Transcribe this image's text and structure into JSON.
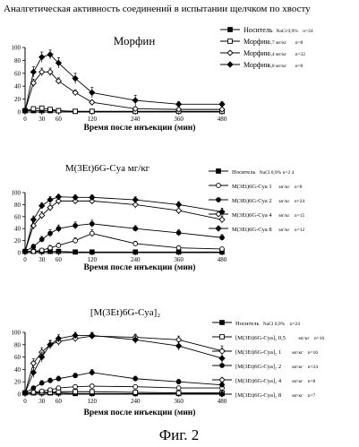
{
  "header": {
    "title": "Аналгетическая активность соединений в испытании щелчком по хвосту",
    "caption": "Фиг. 2"
  },
  "chart_data": [
    {
      "type": "line",
      "title": "Морфин",
      "xlabel": "Время после инъекции (мин)",
      "ylabel": "",
      "xlim": [
        0,
        480
      ],
      "ylim": [
        0,
        100
      ],
      "x_ticks": [
        "0",
        "30",
        "60",
        "120",
        "240",
        "360",
        "480"
      ],
      "y_ticks": [
        "0",
        "20",
        "40",
        "60",
        "80",
        "100"
      ],
      "grid": false,
      "legend_position": "right",
      "series": [
        {
          "name": "Носитель",
          "dose": "NaCl 0,9%",
          "n": "n=24",
          "marker": "square-filled",
          "points": [
            [
              0,
              2
            ],
            [
              15,
              2
            ],
            [
              30,
              2
            ],
            [
              45,
              2
            ],
            [
              60,
              2
            ],
            [
              90,
              1
            ],
            [
              120,
              1
            ],
            [
              240,
              1
            ],
            [
              360,
              1
            ],
            [
              480,
              1
            ]
          ],
          "errors": [
            1,
            1,
            1,
            1,
            1,
            1,
            1,
            1,
            1,
            1
          ]
        },
        {
          "name": "Морфин",
          "dose": "1,7 мг/кг",
          "n": "n=8",
          "marker": "square-open",
          "points": [
            [
              0,
              2
            ],
            [
              15,
              5
            ],
            [
              30,
              6
            ],
            [
              45,
              4
            ],
            [
              60,
              2
            ],
            [
              90,
              1
            ],
            [
              120,
              1
            ],
            [
              240,
              1
            ],
            [
              360,
              1
            ],
            [
              480,
              1
            ]
          ],
          "errors": [
            1,
            3,
            3,
            2,
            1,
            1,
            1,
            1,
            1,
            1
          ]
        },
        {
          "name": "Морфин",
          "dose": "3,4 мг/кг",
          "n": "n=32",
          "marker": "diamond-open",
          "points": [
            [
              0,
              2
            ],
            [
              15,
              45
            ],
            [
              30,
              62
            ],
            [
              45,
              62
            ],
            [
              60,
              48
            ],
            [
              90,
              30
            ],
            [
              120,
              15
            ],
            [
              240,
              5
            ],
            [
              360,
              4
            ],
            [
              480,
              4
            ]
          ],
          "errors": [
            1,
            6,
            6,
            6,
            5,
            4,
            3,
            2,
            2,
            2
          ]
        },
        {
          "name": "Морфин",
          "dose": "6,8 мг/кг",
          "n": "n=8",
          "marker": "diamond-filled",
          "points": [
            [
              0,
              2
            ],
            [
              15,
              62
            ],
            [
              30,
              85
            ],
            [
              45,
              89
            ],
            [
              60,
              76
            ],
            [
              90,
              52
            ],
            [
              120,
              30
            ],
            [
              240,
              18
            ],
            [
              360,
              12
            ],
            [
              480,
              12
            ]
          ],
          "errors": [
            1,
            8,
            8,
            7,
            8,
            8,
            8,
            8,
            4,
            4
          ]
        }
      ]
    },
    {
      "type": "line",
      "title": "M(3Et)6G-Cya мг/кг",
      "xlabel": "Время после инъекции (мин)",
      "ylabel": "",
      "xlim": [
        0,
        480
      ],
      "ylim": [
        0,
        100
      ],
      "x_ticks": [
        "0",
        "30",
        "60",
        "120",
        "240",
        "360",
        "480"
      ],
      "y_ticks": [
        "0",
        "20",
        "40",
        "60",
        "80",
        "100"
      ],
      "grid": false,
      "legend_position": "right",
      "series": [
        {
          "name": "Носитель",
          "dose": "NaCl 0,9% n=2 4",
          "n": "",
          "marker": "square-filled",
          "points": [
            [
              0,
              2
            ],
            [
              15,
              2
            ],
            [
              30,
              2
            ],
            [
              45,
              2
            ],
            [
              60,
              2
            ],
            [
              90,
              1
            ],
            [
              120,
              1
            ],
            [
              240,
              1
            ],
            [
              360,
              1
            ],
            [
              480,
              1
            ]
          ],
          "errors": [
            1,
            1,
            1,
            1,
            1,
            1,
            1,
            1,
            1,
            1
          ]
        },
        {
          "name": "M(3Et)6G-Cya 1",
          "dose": "мг/кг",
          "n": "n=8",
          "marker": "circle-open",
          "points": [
            [
              0,
              2
            ],
            [
              15,
              2
            ],
            [
              30,
              4
            ],
            [
              45,
              8
            ],
            [
              60,
              12
            ],
            [
              90,
              20
            ],
            [
              120,
              32
            ],
            [
              240,
              15
            ],
            [
              360,
              8
            ],
            [
              480,
              6
            ]
          ],
          "errors": [
            1,
            2,
            3,
            4,
            4,
            5,
            6,
            4,
            3,
            3
          ]
        },
        {
          "name": "M(3Et)6G-Cya 2",
          "dose": "мг/кг",
          "n": "n=24",
          "marker": "circle-filled",
          "points": [
            [
              0,
              2
            ],
            [
              15,
              10
            ],
            [
              30,
              22
            ],
            [
              45,
              32
            ],
            [
              60,
              40
            ],
            [
              90,
              45
            ],
            [
              120,
              48
            ],
            [
              240,
              40
            ],
            [
              360,
              33
            ],
            [
              480,
              25
            ]
          ],
          "errors": [
            1,
            4,
            5,
            6,
            6,
            6,
            6,
            5,
            5,
            5
          ]
        },
        {
          "name": "M(3Et)6G-Cya 4",
          "dose": "мг/кг",
          "n": "n=15",
          "marker": "diamond-open",
          "points": [
            [
              0,
              2
            ],
            [
              15,
              45
            ],
            [
              30,
              62
            ],
            [
              45,
              75
            ],
            [
              60,
              86
            ],
            [
              90,
              86
            ],
            [
              120,
              86
            ],
            [
              240,
              80
            ],
            [
              360,
              70
            ],
            [
              480,
              55
            ]
          ],
          "errors": [
            1,
            6,
            6,
            6,
            6,
            5,
            5,
            6,
            6,
            6
          ]
        },
        {
          "name": "M(3Et)6G-Cya 8",
          "dose": "мг/кг",
          "n": "n=12",
          "marker": "diamond-filled",
          "points": [
            [
              0,
              2
            ],
            [
              15,
              55
            ],
            [
              30,
              78
            ],
            [
              45,
              88
            ],
            [
              60,
              93
            ],
            [
              90,
              92
            ],
            [
              120,
              92
            ],
            [
              240,
              88
            ],
            [
              360,
              80
            ],
            [
              480,
              68
            ]
          ],
          "errors": [
            1,
            6,
            5,
            5,
            4,
            4,
            4,
            5,
            5,
            6
          ]
        }
      ]
    },
    {
      "type": "line",
      "title": "[M(3Et)6G-Cya]₂",
      "xlabel": "Время после инъекции (мин)",
      "ylabel": "",
      "xlim": [
        0,
        480
      ],
      "ylim": [
        0,
        100
      ],
      "x_ticks": [
        "0",
        "30",
        "60",
        "120",
        "240",
        "360",
        "480"
      ],
      "y_ticks": [
        "0",
        "20",
        "40",
        "60",
        "80",
        "100"
      ],
      "grid": false,
      "legend_position": "right",
      "series": [
        {
          "name": "Носитель",
          "dose": "NaCl 0,9%",
          "n": "n=24",
          "marker": "square-filled",
          "points": [
            [
              0,
              2
            ],
            [
              15,
              2
            ],
            [
              30,
              2
            ],
            [
              45,
              2
            ],
            [
              60,
              2
            ],
            [
              90,
              1
            ],
            [
              120,
              1
            ],
            [
              240,
              1
            ],
            [
              360,
              1
            ],
            [
              480,
              1
            ]
          ],
          "errors": [
            1,
            1,
            1,
            1,
            1,
            1,
            1,
            1,
            1,
            1
          ]
        },
        {
          "name": "[M(3Et)6G-Cya]₂ 0,5",
          "dose": "мг/кг",
          "n": "n=16",
          "marker": "square-open",
          "points": [
            [
              0,
              2
            ],
            [
              15,
              2
            ],
            [
              30,
              3
            ],
            [
              45,
              3
            ],
            [
              60,
              4
            ],
            [
              90,
              4
            ],
            [
              120,
              4
            ],
            [
              240,
              3
            ],
            [
              360,
              2
            ],
            [
              480,
              2
            ]
          ],
          "errors": [
            1,
            1,
            1,
            1,
            2,
            2,
            2,
            1,
            1,
            1
          ]
        },
        {
          "name": "[M(3Et)6G-Cya]₂ 1",
          "dose": "мг/кг",
          "n": "n=16",
          "marker": "circle-open",
          "points": [
            [
              0,
              2
            ],
            [
              15,
              3
            ],
            [
              30,
              5
            ],
            [
              45,
              7
            ],
            [
              60,
              10
            ],
            [
              90,
              12
            ],
            [
              120,
              13
            ],
            [
              240,
              12
            ],
            [
              360,
              10
            ],
            [
              480,
              10
            ]
          ],
          "errors": [
            1,
            2,
            2,
            3,
            3,
            3,
            3,
            3,
            3,
            3
          ]
        },
        {
          "name": "[M(3Et)6G-Cya]₂ 2",
          "dose": "мг/кг",
          "n": "n=24",
          "marker": "circle-filled",
          "points": [
            [
              0,
              2
            ],
            [
              15,
              10
            ],
            [
              30,
              18
            ],
            [
              45,
              22
            ],
            [
              60,
              25
            ],
            [
              90,
              30
            ],
            [
              120,
              35
            ],
            [
              240,
              25
            ],
            [
              360,
              20
            ],
            [
              480,
              15
            ]
          ],
          "errors": [
            1,
            3,
            4,
            4,
            4,
            4,
            5,
            4,
            4,
            4
          ]
        },
        {
          "name": "[M(3Et)6G-Cya]₂ 4",
          "dose": "мг/кг",
          "n": "n=8",
          "marker": "diamond-open",
          "points": [
            [
              0,
              2
            ],
            [
              15,
              50
            ],
            [
              30,
              68
            ],
            [
              45,
              80
            ],
            [
              60,
              85
            ],
            [
              90,
              90
            ],
            [
              120,
              94
            ],
            [
              240,
              92
            ],
            [
              360,
              88
            ],
            [
              480,
              70
            ]
          ],
          "errors": [
            1,
            7,
            7,
            6,
            6,
            5,
            5,
            5,
            6,
            8
          ]
        },
        {
          "name": "[M(3Et)6G-Cya]₂ 8",
          "dose": "мг/кг",
          "n": "n=7",
          "marker": "diamond-filled",
          "points": [
            [
              0,
              2
            ],
            [
              15,
              35
            ],
            [
              30,
              60
            ],
            [
              45,
              80
            ],
            [
              60,
              90
            ],
            [
              90,
              95
            ],
            [
              120,
              95
            ],
            [
              240,
              88
            ],
            [
              360,
              78
            ],
            [
              480,
              58
            ]
          ],
          "errors": [
            1,
            8,
            8,
            7,
            6,
            5,
            5,
            6,
            7,
            9
          ]
        }
      ]
    }
  ]
}
